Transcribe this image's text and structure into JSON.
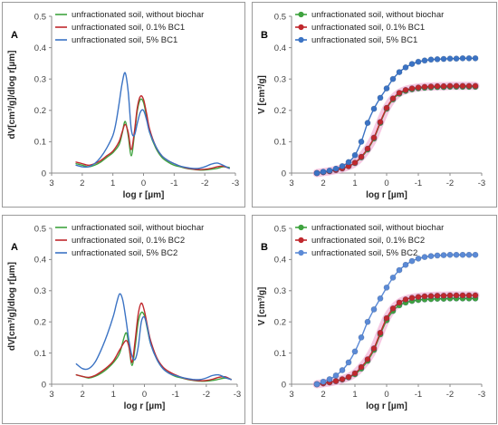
{
  "colors": {
    "green": "#3fa33f",
    "red": "#c0282d",
    "blue": "#3b73c4",
    "blue_light": "#5b8ad6",
    "pink_band": "#f3b6d8"
  },
  "chart_data": [
    {
      "id": "top-A",
      "type": "line",
      "panel_label": "A",
      "xlabel": "log r [µm]",
      "ylabel": "dV[cm³/g]/dlog r[µm]",
      "xlim": [
        3,
        -3
      ],
      "ylim": [
        0,
        0.5
      ],
      "xticks": [
        3,
        2,
        1,
        0,
        -1,
        -2,
        -3
      ],
      "xtick_labels": [
        "3",
        "2",
        "1",
        "0",
        "-1",
        "-2",
        "-3"
      ],
      "yticks": [
        0,
        0.1,
        0.2,
        0.3,
        0.4,
        0.5
      ],
      "ytick_labels": [
        "0",
        "0.1",
        "0.2",
        "0.3",
        "0.4",
        "0.5"
      ],
      "markers": false,
      "legend_position": "top-left",
      "series": [
        {
          "name": "unfractionated soil, without biochar",
          "color": "#3fa33f",
          "x": [
            2.2,
            2.0,
            1.8,
            1.6,
            1.4,
            1.2,
            1.0,
            0.8,
            0.7,
            0.6,
            0.5,
            0.4,
            0.3,
            0.2,
            0.1,
            0.0,
            -0.1,
            -0.2,
            -0.4,
            -0.6,
            -0.8,
            -1.0,
            -1.2,
            -1.4,
            -1.6,
            -1.8,
            -2.0,
            -2.2,
            -2.4,
            -2.6,
            -2.8
          ],
          "y": [
            0.03,
            0.025,
            0.02,
            0.025,
            0.035,
            0.05,
            0.065,
            0.09,
            0.125,
            0.165,
            0.12,
            0.055,
            0.12,
            0.2,
            0.235,
            0.225,
            0.18,
            0.13,
            0.08,
            0.05,
            0.035,
            0.025,
            0.02,
            0.015,
            0.012,
            0.01,
            0.01,
            0.012,
            0.015,
            0.02,
            0.018
          ]
        },
        {
          "name": "unfractionated soil, 0.1% BC1",
          "color": "#c0282d",
          "x": [
            2.2,
            2.0,
            1.8,
            1.6,
            1.4,
            1.2,
            1.0,
            0.8,
            0.7,
            0.6,
            0.5,
            0.4,
            0.3,
            0.2,
            0.1,
            0.0,
            -0.1,
            -0.2,
            -0.4,
            -0.6,
            -0.8,
            -1.0,
            -1.2,
            -1.4,
            -1.6,
            -1.8,
            -2.0,
            -2.2,
            -2.4,
            -2.6,
            -2.8
          ],
          "y": [
            0.035,
            0.03,
            0.025,
            0.03,
            0.04,
            0.055,
            0.07,
            0.1,
            0.13,
            0.155,
            0.13,
            0.075,
            0.13,
            0.21,
            0.245,
            0.235,
            0.19,
            0.14,
            0.085,
            0.055,
            0.04,
            0.03,
            0.022,
            0.016,
            0.013,
            0.011,
            0.012,
            0.015,
            0.02,
            0.022,
            0.015
          ]
        },
        {
          "name": "unfractionated soil, 5% BC1",
          "color": "#3b73c4",
          "x": [
            2.2,
            2.0,
            1.8,
            1.6,
            1.4,
            1.2,
            1.0,
            0.9,
            0.8,
            0.7,
            0.6,
            0.5,
            0.4,
            0.3,
            0.2,
            0.1,
            0.0,
            -0.1,
            -0.2,
            -0.4,
            -0.6,
            -0.8,
            -1.0,
            -1.2,
            -1.4,
            -1.6,
            -1.8,
            -2.0,
            -2.2,
            -2.4,
            -2.6,
            -2.8
          ],
          "y": [
            0.025,
            0.02,
            0.02,
            0.03,
            0.05,
            0.08,
            0.12,
            0.16,
            0.22,
            0.285,
            0.32,
            0.26,
            0.14,
            0.12,
            0.16,
            0.195,
            0.2,
            0.17,
            0.13,
            0.085,
            0.055,
            0.04,
            0.03,
            0.022,
            0.018,
            0.015,
            0.015,
            0.02,
            0.028,
            0.032,
            0.025,
            0.015
          ]
        }
      ]
    },
    {
      "id": "top-B",
      "type": "line",
      "panel_label": "B",
      "xlabel": "log r [µm]",
      "ylabel": "V [cm³/g]",
      "xlim": [
        3,
        -3
      ],
      "ylim": [
        0,
        0.5
      ],
      "xticks": [
        3,
        2,
        1,
        0,
        -1,
        -2,
        -3
      ],
      "xtick_labels": [
        "3",
        "2",
        "1",
        "0",
        "-1",
        "-2",
        "-3"
      ],
      "yticks": [
        0,
        0.1,
        0.2,
        0.3,
        0.4,
        0.5
      ],
      "ytick_labels": [
        "0",
        "0.1",
        "0.2",
        "0.3",
        "0.4",
        "0.5"
      ],
      "markers": true,
      "legend_position": "top-left",
      "series": [
        {
          "name": "unfractionated soil, without biochar",
          "color": "#3fa33f",
          "x": [
            2.2,
            2.0,
            1.8,
            1.6,
            1.4,
            1.2,
            1.0,
            0.8,
            0.6,
            0.4,
            0.2,
            0.0,
            -0.2,
            -0.4,
            -0.6,
            -0.8,
            -1.0,
            -1.2,
            -1.4,
            -1.6,
            -1.8,
            -2.0,
            -2.2,
            -2.4,
            -2.6,
            -2.8
          ],
          "y": [
            0.0,
            0.003,
            0.006,
            0.01,
            0.015,
            0.022,
            0.032,
            0.05,
            0.075,
            0.11,
            0.16,
            0.205,
            0.235,
            0.253,
            0.262,
            0.267,
            0.27,
            0.272,
            0.273,
            0.274,
            0.274,
            0.275,
            0.275,
            0.275,
            0.275,
            0.275
          ]
        },
        {
          "name": "unfractionated soil, 0.1% BC1",
          "color": "#c0282d",
          "x": [
            2.2,
            2.0,
            1.8,
            1.6,
            1.4,
            1.2,
            1.0,
            0.8,
            0.6,
            0.4,
            0.2,
            0.0,
            -0.2,
            -0.4,
            -0.6,
            -0.8,
            -1.0,
            -1.2,
            -1.4,
            -1.6,
            -1.8,
            -2.0,
            -2.2,
            -2.4,
            -2.6,
            -2.8
          ],
          "y": [
            0.0,
            0.003,
            0.006,
            0.01,
            0.015,
            0.022,
            0.033,
            0.052,
            0.078,
            0.113,
            0.163,
            0.208,
            0.238,
            0.256,
            0.265,
            0.27,
            0.273,
            0.275,
            0.276,
            0.277,
            0.277,
            0.278,
            0.278,
            0.278,
            0.278,
            0.278
          ]
        },
        {
          "name": "unfractionated soil, 5% BC1",
          "color": "#3b73c4",
          "x": [
            2.2,
            2.0,
            1.8,
            1.6,
            1.4,
            1.2,
            1.0,
            0.8,
            0.6,
            0.4,
            0.2,
            0.0,
            -0.2,
            -0.4,
            -0.6,
            -0.8,
            -1.0,
            -1.2,
            -1.4,
            -1.6,
            -1.8,
            -2.0,
            -2.2,
            -2.4,
            -2.6,
            -2.8
          ],
          "y": [
            0.0,
            0.004,
            0.008,
            0.014,
            0.022,
            0.035,
            0.057,
            0.1,
            0.16,
            0.205,
            0.24,
            0.27,
            0.3,
            0.322,
            0.337,
            0.348,
            0.355,
            0.359,
            0.362,
            0.363,
            0.364,
            0.365,
            0.365,
            0.366,
            0.366,
            0.366
          ]
        }
      ]
    },
    {
      "id": "bottom-A",
      "type": "line",
      "panel_label": "A",
      "xlabel": "log r [µm]",
      "ylabel": "dV[cm³/g]/dlog r[µm]",
      "xlim": [
        3,
        -3
      ],
      "ylim": [
        0,
        0.5
      ],
      "xticks": [
        3,
        2,
        1,
        0,
        -1,
        -2,
        -3
      ],
      "xtick_labels": [
        "3",
        "2",
        "1",
        "0",
        "-1",
        "-2",
        "-3"
      ],
      "yticks": [
        0,
        0.1,
        0.2,
        0.3,
        0.4,
        0.5
      ],
      "ytick_labels": [
        "0",
        "0.1",
        "0.2",
        "0.3",
        "0.4",
        "0.5"
      ],
      "markers": false,
      "legend_position": "top-left",
      "series": [
        {
          "name": "unfractionated soil, without biochar",
          "color": "#3fa33f",
          "x": [
            2.2,
            2.0,
            1.8,
            1.6,
            1.4,
            1.2,
            1.0,
            0.8,
            0.6,
            0.5,
            0.4,
            0.3,
            0.2,
            0.1,
            0.0,
            -0.1,
            -0.2,
            -0.4,
            -0.6,
            -0.8,
            -1.0,
            -1.2,
            -1.4,
            -1.6,
            -1.8,
            -2.0,
            -2.2,
            -2.4,
            -2.6,
            -2.8
          ],
          "y": [
            0.03,
            0.025,
            0.02,
            0.025,
            0.035,
            0.05,
            0.07,
            0.1,
            0.165,
            0.12,
            0.06,
            0.12,
            0.2,
            0.23,
            0.22,
            0.175,
            0.13,
            0.08,
            0.05,
            0.035,
            0.025,
            0.02,
            0.015,
            0.012,
            0.01,
            0.01,
            0.012,
            0.016,
            0.02,
            0.016
          ]
        },
        {
          "name": "unfractionated soil, 0.1% BC2",
          "color": "#c0282d",
          "x": [
            2.2,
            2.0,
            1.8,
            1.6,
            1.4,
            1.2,
            1.0,
            0.8,
            0.6,
            0.5,
            0.4,
            0.3,
            0.2,
            0.1,
            0.0,
            -0.1,
            -0.2,
            -0.4,
            -0.6,
            -0.8,
            -1.0,
            -1.2,
            -1.4,
            -1.6,
            -1.8,
            -2.0,
            -2.2,
            -2.4,
            -2.6,
            -2.8
          ],
          "y": [
            0.03,
            0.025,
            0.022,
            0.028,
            0.04,
            0.055,
            0.075,
            0.11,
            0.14,
            0.12,
            0.07,
            0.14,
            0.225,
            0.26,
            0.235,
            0.185,
            0.14,
            0.085,
            0.055,
            0.04,
            0.03,
            0.022,
            0.016,
            0.013,
            0.011,
            0.012,
            0.016,
            0.022,
            0.024,
            0.015
          ]
        },
        {
          "name": "unfractionated soil, 5% BC2",
          "color": "#3b73c4",
          "x": [
            2.2,
            2.0,
            1.8,
            1.6,
            1.4,
            1.2,
            1.0,
            0.9,
            0.8,
            0.7,
            0.6,
            0.5,
            0.4,
            0.3,
            0.2,
            0.1,
            0.0,
            -0.1,
            -0.2,
            -0.4,
            -0.6,
            -0.8,
            -1.0,
            -1.2,
            -1.4,
            -1.6,
            -1.8,
            -2.0,
            -2.2,
            -2.4,
            -2.6,
            -2.8
          ],
          "y": [
            0.065,
            0.05,
            0.05,
            0.07,
            0.11,
            0.16,
            0.22,
            0.26,
            0.29,
            0.27,
            0.21,
            0.14,
            0.09,
            0.08,
            0.12,
            0.2,
            0.215,
            0.18,
            0.13,
            0.08,
            0.05,
            0.035,
            0.028,
            0.022,
            0.018,
            0.015,
            0.015,
            0.02,
            0.028,
            0.03,
            0.022,
            0.015
          ]
        }
      ]
    },
    {
      "id": "bottom-B",
      "type": "line",
      "panel_label": "B",
      "xlabel": "log r [µm]",
      "ylabel": "V [cm³/g]",
      "xlim": [
        3,
        -3
      ],
      "ylim": [
        0,
        0.5
      ],
      "xticks": [
        3,
        2,
        1,
        0,
        -1,
        -2,
        -3
      ],
      "xtick_labels": [
        "3",
        "2",
        "1",
        "0",
        "-1",
        "-2",
        "-3"
      ],
      "yticks": [
        0,
        0.1,
        0.2,
        0.3,
        0.4,
        0.5
      ],
      "ytick_labels": [
        "0",
        "0.1",
        "0.2",
        "0.3",
        "0.4",
        "0.5"
      ],
      "markers": true,
      "legend_position": "top-left",
      "series": [
        {
          "name": "unfractionated soil, without biochar",
          "color": "#3fa33f",
          "x": [
            2.2,
            2.0,
            1.8,
            1.6,
            1.4,
            1.2,
            1.0,
            0.8,
            0.6,
            0.4,
            0.2,
            0.0,
            -0.2,
            -0.4,
            -0.6,
            -0.8,
            -1.0,
            -1.2,
            -1.4,
            -1.6,
            -1.8,
            -2.0,
            -2.2,
            -2.4,
            -2.6,
            -2.8
          ],
          "y": [
            0.0,
            0.003,
            0.006,
            0.01,
            0.015,
            0.022,
            0.032,
            0.05,
            0.075,
            0.11,
            0.16,
            0.205,
            0.235,
            0.253,
            0.262,
            0.267,
            0.27,
            0.272,
            0.273,
            0.274,
            0.274,
            0.275,
            0.275,
            0.275,
            0.275,
            0.275
          ]
        },
        {
          "name": "unfractionated soil, 0.1% BC2",
          "color": "#c0282d",
          "x": [
            2.2,
            2.0,
            1.8,
            1.6,
            1.4,
            1.2,
            1.0,
            0.8,
            0.6,
            0.4,
            0.2,
            0.0,
            -0.2,
            -0.4,
            -0.6,
            -0.8,
            -1.0,
            -1.2,
            -1.4,
            -1.6,
            -1.8,
            -2.0,
            -2.2,
            -2.4,
            -2.6,
            -2.8
          ],
          "y": [
            0.0,
            0.003,
            0.006,
            0.01,
            0.016,
            0.023,
            0.035,
            0.055,
            0.08,
            0.115,
            0.165,
            0.212,
            0.243,
            0.262,
            0.272,
            0.277,
            0.28,
            0.282,
            0.283,
            0.284,
            0.284,
            0.285,
            0.285,
            0.285,
            0.285,
            0.285
          ]
        },
        {
          "name": "unfractionated soil, 5% BC2",
          "color": "#5b8ad6",
          "x": [
            2.2,
            2.0,
            1.8,
            1.6,
            1.4,
            1.2,
            1.0,
            0.8,
            0.6,
            0.4,
            0.2,
            0.0,
            -0.2,
            -0.4,
            -0.6,
            -0.8,
            -1.0,
            -1.2,
            -1.4,
            -1.6,
            -1.8,
            -2.0,
            -2.2,
            -2.4,
            -2.6,
            -2.8
          ],
          "y": [
            0.0,
            0.008,
            0.016,
            0.028,
            0.045,
            0.07,
            0.105,
            0.15,
            0.2,
            0.24,
            0.275,
            0.31,
            0.342,
            0.366,
            0.383,
            0.395,
            0.403,
            0.408,
            0.411,
            0.413,
            0.414,
            0.415,
            0.415,
            0.415,
            0.415,
            0.415
          ]
        }
      ]
    }
  ]
}
